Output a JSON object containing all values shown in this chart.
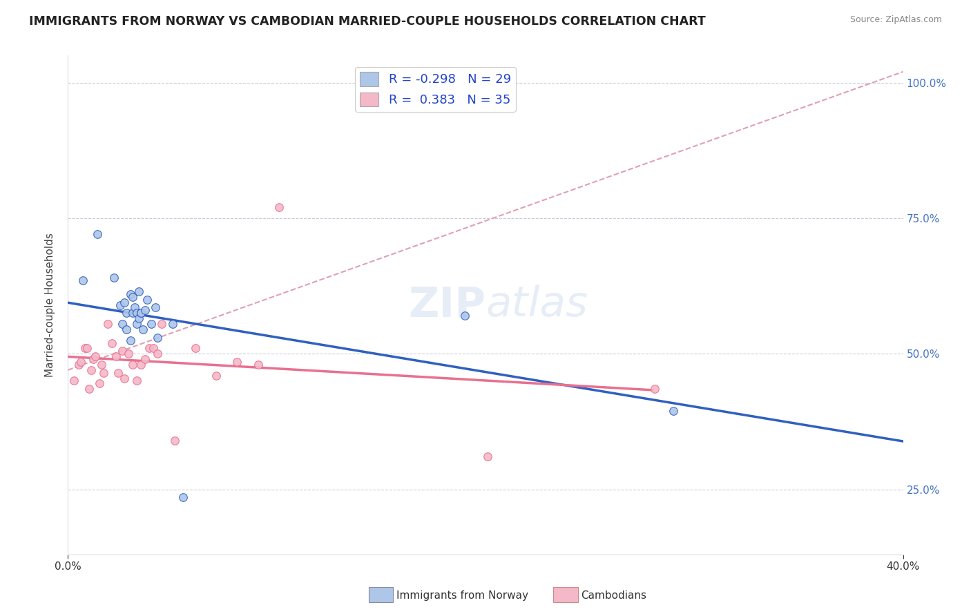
{
  "title": "IMMIGRANTS FROM NORWAY VS CAMBODIAN MARRIED-COUPLE HOUSEHOLDS CORRELATION CHART",
  "source": "Source: ZipAtlas.com",
  "ylabel_label": "Married-couple Households",
  "ytick_values": [
    0.25,
    0.5,
    0.75,
    1.0
  ],
  "xlim": [
    0.0,
    0.4
  ],
  "ylim": [
    0.13,
    1.05
  ],
  "norway_R": -0.298,
  "norway_N": 29,
  "cambodian_R": 0.383,
  "cambodian_N": 35,
  "norway_color": "#aec6e8",
  "cambodian_color": "#f4b8c8",
  "norway_line_color": "#3060c0",
  "cambodian_line_color": "#e87090",
  "trendline_dashed_color": "#e0a0b0",
  "background_color": "#ffffff",
  "norway_x": [
    0.007,
    0.014,
    0.022,
    0.025,
    0.026,
    0.027,
    0.028,
    0.028,
    0.03,
    0.03,
    0.031,
    0.031,
    0.032,
    0.033,
    0.033,
    0.034,
    0.034,
    0.035,
    0.035,
    0.036,
    0.037,
    0.038,
    0.04,
    0.042,
    0.043,
    0.05,
    0.055,
    0.19,
    0.29
  ],
  "norway_y": [
    0.635,
    0.72,
    0.64,
    0.59,
    0.555,
    0.595,
    0.545,
    0.575,
    0.525,
    0.61,
    0.605,
    0.575,
    0.585,
    0.555,
    0.575,
    0.615,
    0.565,
    0.575,
    0.575,
    0.545,
    0.58,
    0.6,
    0.555,
    0.585,
    0.53,
    0.555,
    0.235,
    0.57,
    0.395
  ],
  "cambodian_x": [
    0.003,
    0.005,
    0.006,
    0.008,
    0.009,
    0.01,
    0.011,
    0.012,
    0.013,
    0.015,
    0.016,
    0.017,
    0.019,
    0.021,
    0.023,
    0.024,
    0.026,
    0.027,
    0.029,
    0.031,
    0.033,
    0.035,
    0.037,
    0.039,
    0.041,
    0.043,
    0.045,
    0.051,
    0.061,
    0.071,
    0.081,
    0.091,
    0.101,
    0.201,
    0.281
  ],
  "cambodian_y": [
    0.45,
    0.48,
    0.485,
    0.51,
    0.51,
    0.435,
    0.47,
    0.49,
    0.495,
    0.445,
    0.48,
    0.465,
    0.555,
    0.52,
    0.495,
    0.465,
    0.505,
    0.455,
    0.5,
    0.48,
    0.45,
    0.48,
    0.49,
    0.51,
    0.51,
    0.5,
    0.555,
    0.34,
    0.51,
    0.46,
    0.485,
    0.48,
    0.77,
    0.31,
    0.435
  ]
}
